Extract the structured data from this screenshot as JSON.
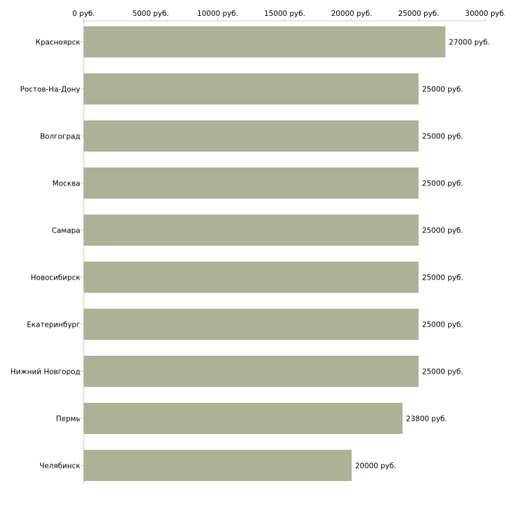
{
  "chart_data": {
    "type": "bar",
    "orientation": "horizontal",
    "title": "",
    "xlabel": "",
    "ylabel": "",
    "xlim": [
      0,
      30000
    ],
    "unit_suffix": " руб.",
    "ticks": [
      0,
      5000,
      10000,
      15000,
      20000,
      25000,
      30000
    ],
    "tick_labels": [
      "0 руб.",
      "5000 руб.",
      "10000 руб.",
      "15000 руб.",
      "20000 руб.",
      "25000 руб.",
      "30000 руб."
    ],
    "categories": [
      "Красноярск",
      "Ростов-На-Дону",
      "Волгоград",
      "Москва",
      "Самара",
      "Новосибирск",
      "Екатеринбург",
      "Нижний Новгород",
      "Пермь",
      "Челябинск"
    ],
    "values": [
      27000,
      25000,
      25000,
      25000,
      25000,
      25000,
      25000,
      25000,
      23800,
      20000
    ],
    "data_labels": [
      "27000 руб.",
      "25000 руб.",
      "25000 руб.",
      "25000 руб.",
      "25000 руб.",
      "25000 руб.",
      "25000 руб.",
      "25000 руб.",
      "23800 руб.",
      "20000 руб."
    ],
    "bar_color": "#acb296",
    "axis_color": "#c8c8bc",
    "grid": false
  }
}
